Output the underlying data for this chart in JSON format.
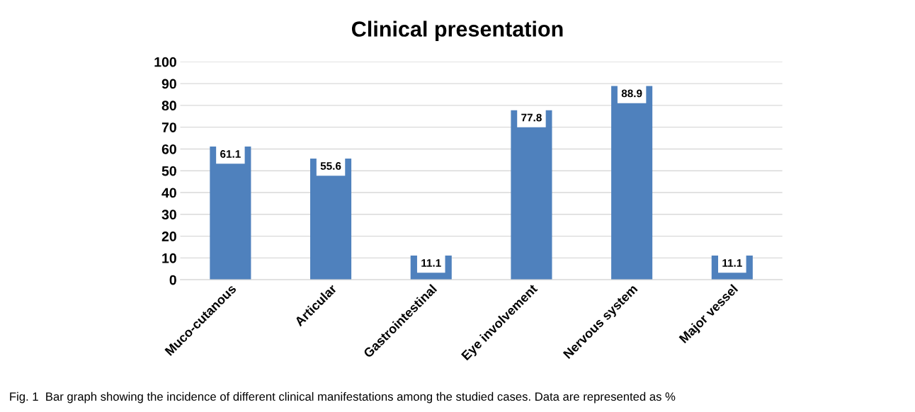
{
  "chart_data": {
    "type": "bar",
    "title": "Clinical presentation",
    "categories": [
      "Muco-cutanous",
      "Articular",
      "Gastrointestinal",
      "Eye involvement",
      "Nervous system",
      "Major vessel"
    ],
    "values": [
      61.1,
      55.6,
      11.1,
      77.8,
      88.9,
      11.1
    ],
    "color": "#4f81bd",
    "ylim": [
      0,
      100
    ],
    "yticks": [
      0,
      10,
      20,
      30,
      40,
      50,
      60,
      70,
      80,
      90,
      100
    ],
    "grid": "y",
    "data_labels": true,
    "annotations": [
      "Fig. 1  Bar graph showing the incidence of different clinical manifestations among the studied cases. Data are represented as %"
    ]
  }
}
